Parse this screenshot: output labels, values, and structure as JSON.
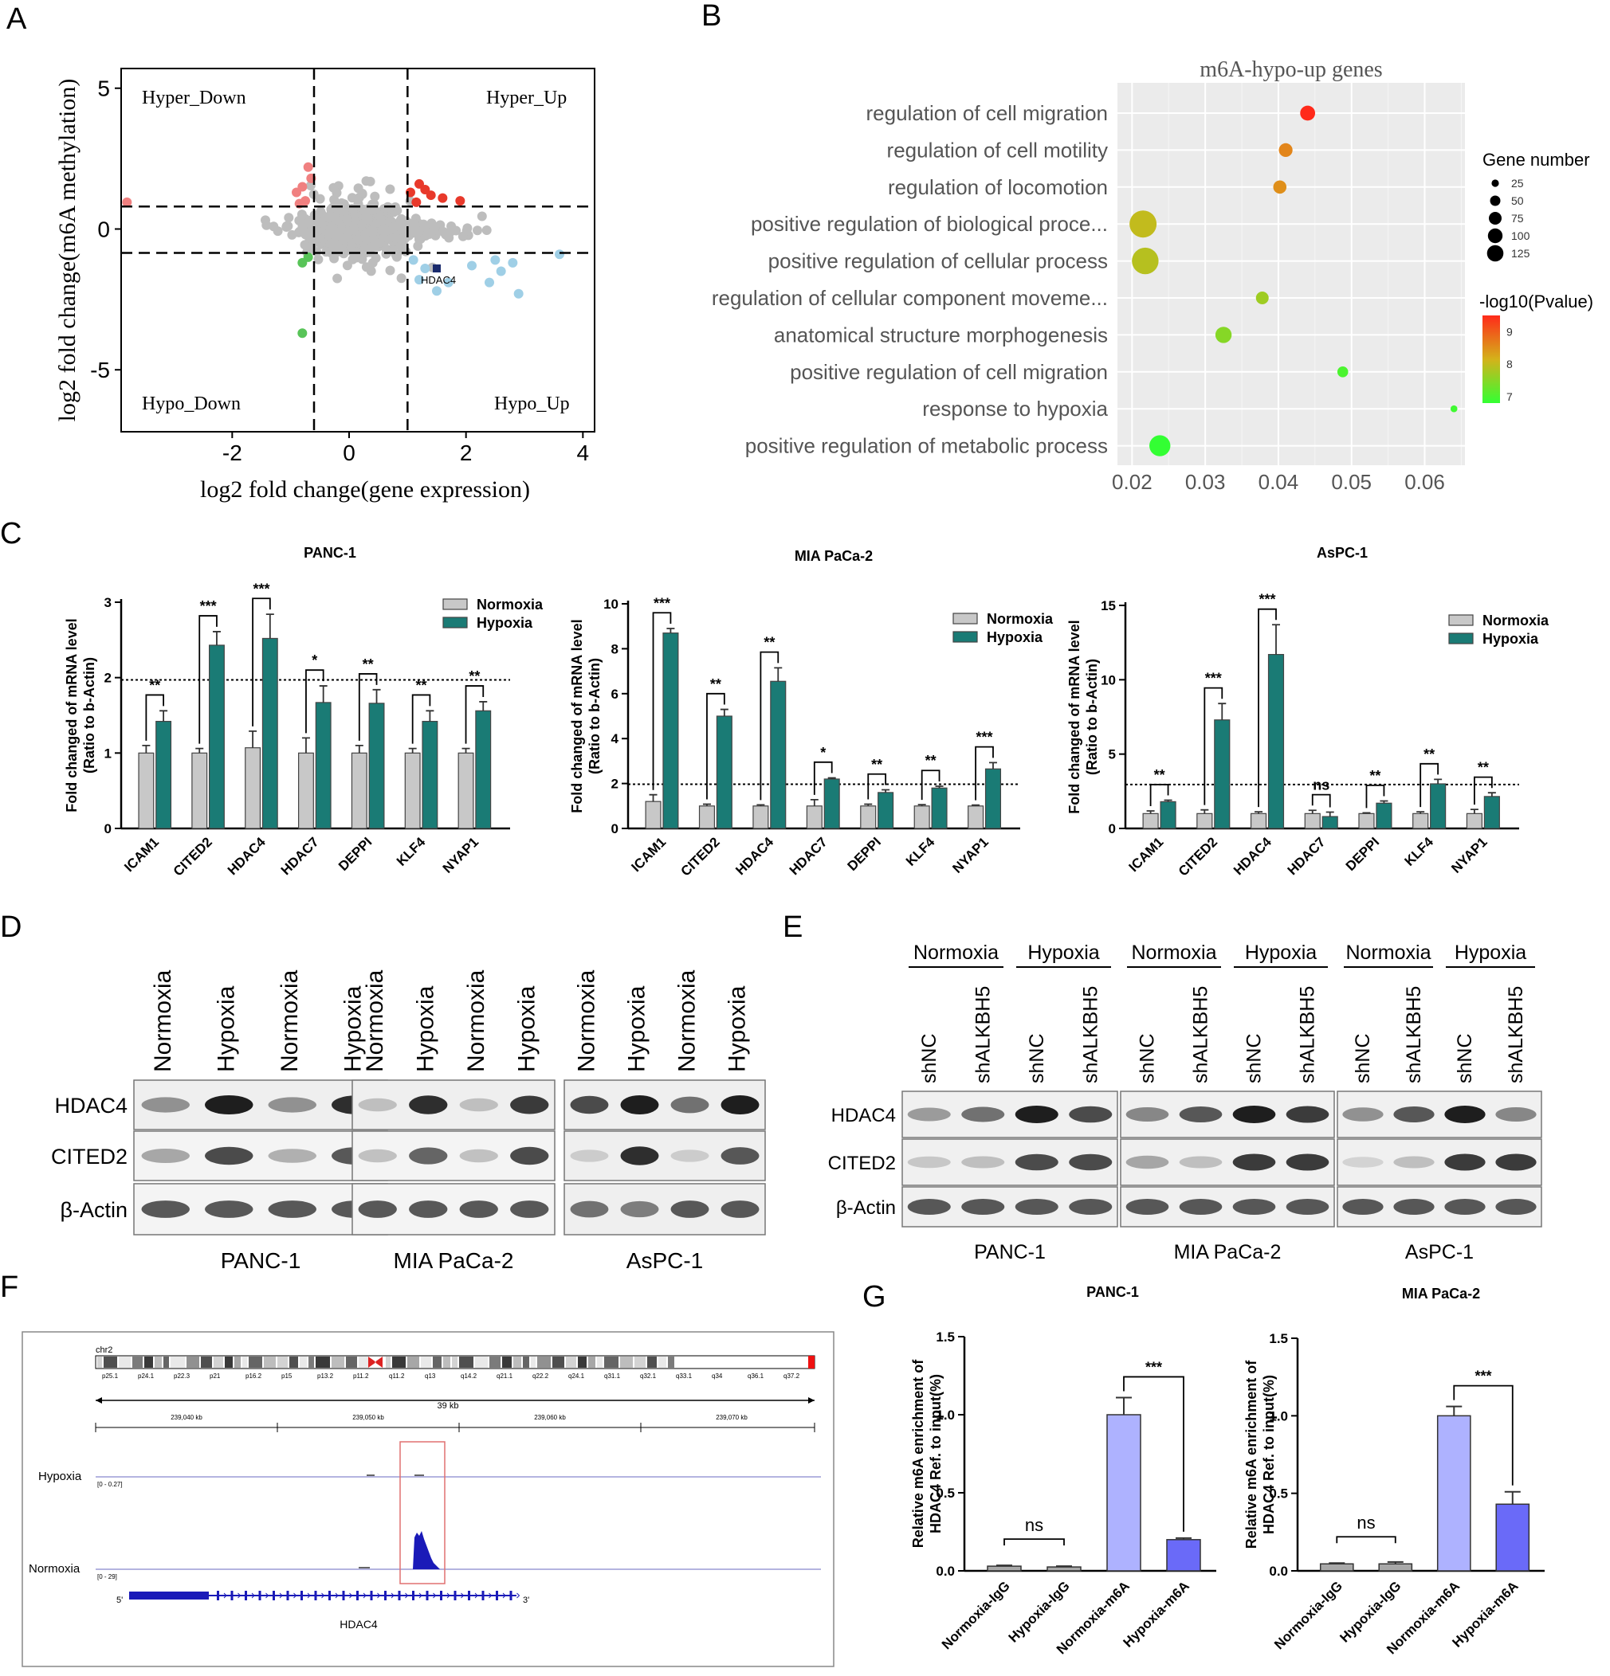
{
  "panels": {
    "A": "A",
    "B": "B",
    "C": "C",
    "D": "D",
    "E": "E",
    "F": "F",
    "G": "G"
  },
  "panelA": {
    "xlabel": "log2 fold change(gene expression)",
    "ylabel": "log2 fold change(m6A methylation)",
    "quadrants": {
      "tl": "Hyper_Down",
      "tr": "Hyper_Up",
      "bl": "Hypo_Down",
      "br": "Hypo_Up"
    },
    "highlight": "HDAC4",
    "xticks": [
      "-2",
      "0",
      "2",
      "4"
    ],
    "yticks": [
      "5",
      "0",
      "-5"
    ]
  },
  "panelB": {
    "title": "m6A-hypo-up genes",
    "size_title": "Gene number",
    "color_title": "-log10(Pvalue)",
    "size_ticks": [
      "25",
      "50",
      "75",
      "100",
      "125"
    ],
    "color_ticks": [
      "9",
      "8",
      "7"
    ],
    "xticks": [
      "0.02",
      "0.03",
      "0.04",
      "0.05",
      "0.06"
    ]
  },
  "panelC": {
    "ylabel1": "Fold changed of mRNA level",
    "ylabel2": "(Ratio to b-Actin)",
    "legend": [
      "Normoxia",
      "Hypoxia"
    ],
    "colors": {
      "normoxia": "#c8c8c8",
      "hypoxia": "#1a7b75"
    },
    "genes": [
      "ICAM1",
      "CITED2",
      "HDAC4",
      "HDAC7",
      "DEPPI",
      "KLF4",
      "NYAP1"
    ]
  },
  "panelD": {
    "lane_labels": [
      "Normoxia",
      "Hypoxia",
      "Normoxia",
      "Hypoxia"
    ],
    "rows": [
      "HDAC4",
      "CITED2",
      "β-Actin"
    ],
    "cells": [
      "PANC-1",
      "MIA PaCa-2",
      "AsPC-1"
    ]
  },
  "panelE": {
    "groups": [
      "Normoxia",
      "Hypoxia"
    ],
    "lanes": [
      "shNC",
      "shALKBH5",
      "shNC",
      "shALKBH5"
    ],
    "rows": [
      "HDAC4",
      "CITED2",
      "β-Actin"
    ],
    "cells": [
      "PANC-1",
      "MIA PaCa-2",
      "AsPC-1"
    ]
  },
  "panelF": {
    "chrom": "chr2",
    "bands": [
      "p25.1",
      "p24.1",
      "p22.3",
      "p21",
      "p16.2",
      "p15",
      "p13.2",
      "p11.2",
      "q11.2",
      "q13",
      "q14.2",
      "q21.1",
      "q22.2",
      "q24.1",
      "q31.1",
      "q32.1",
      "q33.1",
      "q34",
      "q36.1",
      "q37.2"
    ],
    "scale": "39 kb",
    "coords": [
      "239,040 kb",
      "239,050 kb",
      "239,060 kb",
      "239,070 kb"
    ],
    "tracks": [
      {
        "name": "Hypoxia",
        "range": "[0 - 0.27]"
      },
      {
        "name": "Normoxia",
        "range": "[0 - 29]"
      }
    ],
    "gene": "HDAC4",
    "five": "5'",
    "three": "3'"
  },
  "panelG": {
    "ylabel1": "Relative m6A enrichment of",
    "ylabel2": "HDAC4 Ref. to input(%)",
    "categories": [
      "Normoxia-IgG",
      "Hypoxia-IgG",
      "Normoxia-m6A",
      "Hypoxia-m6A"
    ],
    "yticks": [
      "0.0",
      "0.5",
      "1.0",
      "1.5"
    ]
  },
  "chart_data": [
    {
      "id": "A",
      "type": "scatter",
      "title": "",
      "xlabel": "log2 fold change(gene expression)",
      "ylabel": "log2 fold change(m6A methylation)",
      "xlim": [
        -3.9,
        4.2
      ],
      "ylim": [
        -7.2,
        5.7
      ],
      "thresholds": {
        "x": [
          -0.6,
          1.0
        ],
        "y": [
          -0.85,
          0.8
        ]
      },
      "series": [
        {
          "name": "Hyper_Down",
          "color": "#f08080",
          "x": [
            -3.8,
            -0.8,
            -0.7,
            -0.75,
            -0.9,
            -0.65,
            -0.85
          ],
          "y": [
            0.95,
            1.5,
            2.2,
            1.0,
            1.3,
            1.8,
            0.9
          ]
        },
        {
          "name": "Hyper_Up",
          "color": "#e8392b",
          "x": [
            1.05,
            1.2,
            1.4,
            1.6,
            1.9,
            1.15,
            1.3
          ],
          "y": [
            1.3,
            1.6,
            1.2,
            1.1,
            1.0,
            0.95,
            1.4
          ]
        },
        {
          "name": "Hypo_Down",
          "color": "#58c458",
          "x": [
            -0.7,
            -0.8,
            -0.8
          ],
          "y": [
            -1.0,
            -1.2,
            -3.7
          ]
        },
        {
          "name": "Hypo_Up",
          "color": "#9fcfe6",
          "x": [
            1.1,
            1.3,
            1.7,
            2.1,
            2.5,
            2.6,
            2.8,
            3.6,
            1.2,
            1.5,
            2.4,
            2.9
          ],
          "y": [
            -1.1,
            -1.4,
            -1.9,
            -1.3,
            -1.1,
            -1.5,
            -1.2,
            -0.9,
            -1.8,
            -2.2,
            -1.9,
            -2.3
          ]
        },
        {
          "name": "HDAC4",
          "color": "#1a2a6c",
          "x": [
            1.5
          ],
          "y": [
            -1.4
          ]
        }
      ]
    },
    {
      "id": "B",
      "type": "scatter",
      "title": "m6A-hypo-up genes",
      "xlabel": "",
      "ylabel": "",
      "xlim": [
        0.018,
        0.0655
      ],
      "categories": [
        "regulation of cell migration",
        "regulation of cell motility",
        "regulation of locomotion",
        "positive regulation of biological proce...",
        "positive regulation of cellular process",
        "regulation of cellular component moveme...",
        "anatomical structure morphogenesis",
        "positive regulation of cell migration",
        "response to hypoxia",
        "positive regulation of metabolic process"
      ],
      "x": [
        0.044,
        0.041,
        0.0402,
        0.0215,
        0.0218,
        0.0378,
        0.0325,
        0.0488,
        0.064,
        0.0238
      ],
      "gene_number": [
        38,
        32,
        30,
        125,
        120,
        28,
        45,
        20,
        8,
        75
      ],
      "neglog10p": [
        9.5,
        8.6,
        8.5,
        8.0,
        7.9,
        7.7,
        7.5,
        7.0,
        6.9,
        6.8
      ]
    },
    {
      "id": "C1",
      "type": "bar",
      "title": "PANC-1",
      "categories": [
        "ICAM1",
        "CITED2",
        "HDAC4",
        "HDAC7",
        "DEPPI",
        "KLF4",
        "NYAP1"
      ],
      "ylim": [
        0,
        3
      ],
      "yticks": [
        0,
        1,
        2,
        3
      ],
      "threshold": 1.97,
      "series": [
        {
          "name": "Normoxia",
          "values": [
            1,
            1,
            1.07,
            1,
            1,
            1,
            1
          ],
          "err": [
            0.1,
            0.06,
            0.22,
            0.2,
            0.1,
            0.06,
            0.06
          ]
        },
        {
          "name": "Hypoxia",
          "values": [
            1.42,
            2.43,
            2.52,
            1.67,
            1.66,
            1.42,
            1.56
          ],
          "err": [
            0.14,
            0.18,
            0.32,
            0.22,
            0.18,
            0.14,
            0.12
          ]
        }
      ],
      "significance": [
        "**",
        "***",
        "***",
        "*",
        "**",
        "**",
        "**"
      ]
    },
    {
      "id": "C2",
      "type": "bar",
      "title": "MIA PaCa-2",
      "categories": [
        "ICAM1",
        "CITED2",
        "HDAC4",
        "HDAC7",
        "DEPPI",
        "KLF4",
        "NYAP1"
      ],
      "ylim": [
        0,
        10
      ],
      "yticks": [
        0,
        2,
        4,
        6,
        8,
        10
      ],
      "threshold": 1.97,
      "series": [
        {
          "name": "Normoxia",
          "values": [
            1.2,
            1,
            1,
            1,
            1,
            1,
            1
          ],
          "err": [
            0.3,
            0.08,
            0.05,
            0.28,
            0.08,
            0.06,
            0.04
          ]
        },
        {
          "name": "Hypoxia",
          "values": [
            8.7,
            5,
            6.55,
            2.2,
            1.6,
            1.8,
            2.65
          ],
          "err": [
            0.2,
            0.3,
            0.6,
            0.05,
            0.12,
            0.08,
            0.28
          ]
        }
      ],
      "significance": [
        "***",
        "**",
        "**",
        "*",
        "**",
        "**",
        "***"
      ]
    },
    {
      "id": "C3",
      "type": "bar",
      "title": "AsPC-1",
      "categories": [
        "ICAM1",
        "CITED2",
        "HDAC4",
        "HDAC7",
        "DEPPI",
        "KLF4",
        "NYAP1"
      ],
      "ylim": [
        0,
        15
      ],
      "yticks": [
        0,
        5,
        10,
        15
      ],
      "threshold": 2.95,
      "series": [
        {
          "name": "Normoxia",
          "values": [
            1,
            1,
            1,
            1,
            1,
            1,
            1
          ],
          "err": [
            0.18,
            0.25,
            0.12,
            0.22,
            0.05,
            0.12,
            0.28
          ]
        },
        {
          "name": "Hypoxia",
          "values": [
            1.8,
            7.3,
            11.7,
            0.8,
            1.7,
            3,
            2.15
          ],
          "err": [
            0.1,
            1.1,
            2,
            0.3,
            0.15,
            0.3,
            0.25
          ]
        }
      ],
      "significance": [
        "**",
        "***",
        "***",
        "ns",
        "**",
        "**",
        "**"
      ]
    },
    {
      "id": "G1",
      "type": "bar",
      "title": "PANC-1",
      "categories": [
        "Normoxia-IgG",
        "Hypoxia-IgG",
        "Normoxia-m6A",
        "Hypoxia-m6A"
      ],
      "ylim": [
        0,
        1.5
      ],
      "yticks": [
        0,
        0.5,
        1.0,
        1.5
      ],
      "values": [
        0.03,
        0.025,
        1.0,
        0.2
      ],
      "err": [
        0.005,
        0.005,
        0.11,
        0.01
      ],
      "colors": [
        "#a8a8a8",
        "#a8a8a8",
        "#aeb2ff",
        "#6a6af8"
      ],
      "significance": [
        "ns",
        "***"
      ]
    },
    {
      "id": "G2",
      "type": "bar",
      "title": "MIA PaCa-2",
      "categories": [
        "Normoxia-IgG",
        "Hypoxia-IgG",
        "Normoxia-m6A",
        "Hypoxia-m6A"
      ],
      "ylim": [
        0,
        1.5
      ],
      "yticks": [
        0,
        0.5,
        1.0,
        1.5
      ],
      "values": [
        0.045,
        0.045,
        1.0,
        0.43
      ],
      "err": [
        0.005,
        0.012,
        0.06,
        0.08
      ],
      "colors": [
        "#a8a8a8",
        "#a8a8a8",
        "#aeb2ff",
        "#6a6af8"
      ],
      "significance": [
        "ns",
        "***"
      ]
    }
  ]
}
